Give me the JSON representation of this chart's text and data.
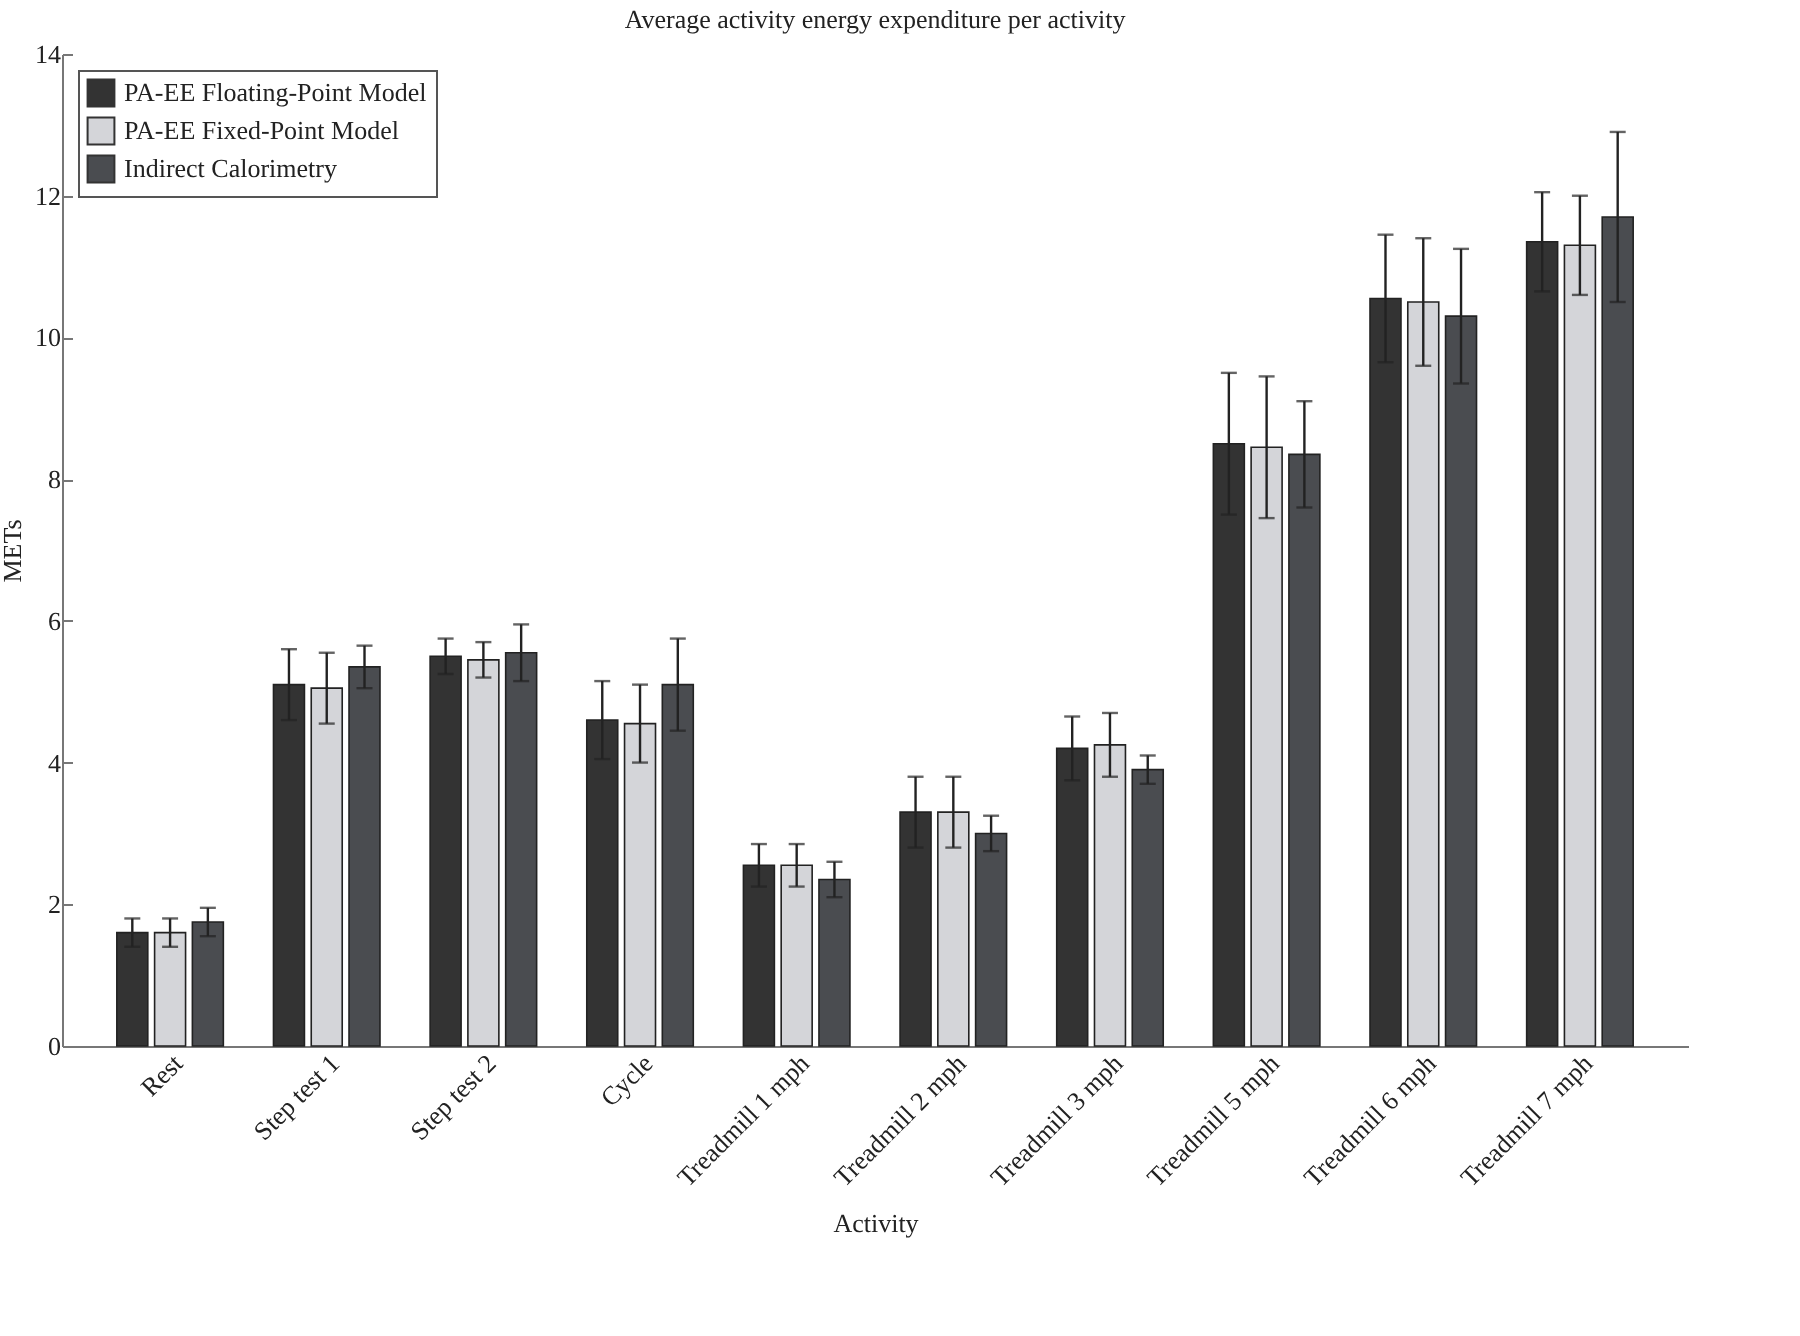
{
  "chart_data": {
    "type": "bar",
    "title": "Average activity energy expenditure per activity",
    "xlabel": "Activity",
    "ylabel": "METs",
    "categories": [
      "Rest",
      "Step test 1",
      "Step test 2",
      "Cycle",
      "Treadmill 1 mph",
      "Treadmill 2 mph",
      "Treadmill 3 mph",
      "Treadmill 5 mph",
      "Treadmill 6 mph",
      "Treadmill 7 mph"
    ],
    "series": [
      {
        "name": "PA-EE Floating-Point Model",
        "color": "#333333",
        "values": [
          1.6,
          5.1,
          5.5,
          4.6,
          2.55,
          3.3,
          4.2,
          8.5,
          10.55,
          11.35
        ],
        "errors": [
          0.2,
          0.5,
          0.25,
          0.55,
          0.3,
          0.5,
          0.45,
          1.0,
          0.9,
          0.7
        ]
      },
      {
        "name": "PA-EE Fixed-Point Model",
        "color": "#d4d5d9",
        "values": [
          1.6,
          5.05,
          5.45,
          4.55,
          2.55,
          3.3,
          4.25,
          8.45,
          10.5,
          11.3
        ],
        "errors": [
          0.2,
          0.5,
          0.25,
          0.55,
          0.3,
          0.5,
          0.45,
          1.0,
          0.9,
          0.7
        ]
      },
      {
        "name": "Indirect Calorimetry",
        "color": "#4a4c50",
        "values": [
          1.75,
          5.35,
          5.55,
          5.1,
          2.35,
          3.0,
          3.9,
          8.35,
          10.3,
          11.7
        ],
        "errors": [
          0.2,
          0.3,
          0.4,
          0.65,
          0.25,
          0.25,
          0.2,
          0.75,
          0.95,
          1.2
        ]
      }
    ],
    "ylim": [
      0,
      14
    ],
    "yticks": [
      0,
      2,
      4,
      6,
      8,
      10,
      12,
      14
    ],
    "grid": false,
    "legend": "top left"
  }
}
